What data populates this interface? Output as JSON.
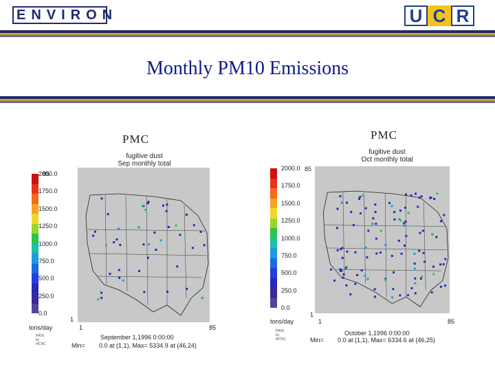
{
  "header": {
    "logo_left": "ENVIRON",
    "logo_right": [
      "U",
      "C",
      "R"
    ],
    "title": "Monthly PM10 Emissions"
  },
  "colors": {
    "navy": "#1f2a6e",
    "gold": "#c9a227",
    "title_blue": "#0d1a8a",
    "map_gray": "#c8c8c8"
  },
  "colorbar_stops": [
    "#cc1111",
    "#e8331a",
    "#f56a1c",
    "#f7a51f",
    "#f0d72a",
    "#99d62a",
    "#2cc44a",
    "#1fbfa8",
    "#1b9be0",
    "#1a6ae6",
    "#1e3fdc",
    "#2a28b8",
    "#3b2a9a",
    "#50459a"
  ],
  "panels": [
    {
      "id": "sep",
      "label": "PMC",
      "subtitle_line1": "fugitive dust",
      "subtitle_line2": "Sep monthly total",
      "scale_max": "2000.0",
      "grid_rows": "85",
      "ticks": [
        "2000.0",
        "1750.0",
        "1500.0",
        "1250.0",
        "1000.0",
        "750.0",
        "500.0",
        "250.0",
        "0.0"
      ],
      "units": "tons/day",
      "y_min": "1",
      "x_min": "1",
      "x_max": "85",
      "timestamp": "September 1,1996 0:00:00",
      "minmax_label": "Min=",
      "minmax": "0.0 at (1,1), Max= 5334.9 at (46,24)",
      "credit": [
        "PAVE",
        "by",
        "MCNC"
      ]
    },
    {
      "id": "oct",
      "label": "PMC",
      "subtitle_line1": "fugitive dust",
      "subtitle_line2": "Oct monthly total",
      "scale_max": "2000.0",
      "grid_rows": "85",
      "ticks": [
        "2000.0",
        "1750.0",
        "1500.0",
        "1250.0",
        "1000.0",
        "750.0",
        "500.0",
        "250.0",
        "0.0"
      ],
      "units": "tons/day",
      "y_min": "1",
      "x_min": "1",
      "x_max": "85",
      "timestamp": "October 1,1996 0:00:00",
      "minmax_label": "Min=",
      "minmax": "0.0 at (1,1), Max= 6334.6 at (46,25)",
      "credit": [
        "PAVE",
        "by",
        "MCNC"
      ]
    }
  ]
}
